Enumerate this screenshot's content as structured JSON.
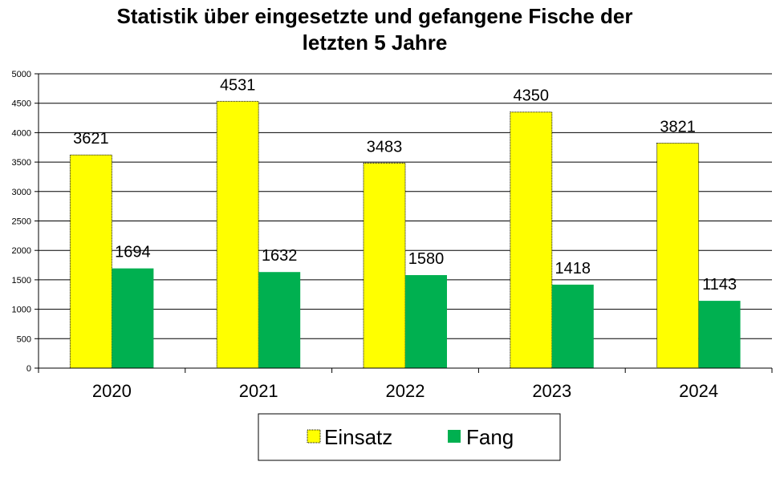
{
  "chart_data": {
    "type": "bar",
    "title_line1": "Statistik über eingesetzte und gefangene Fische der",
    "title_line2": "letzten 5 Jahre",
    "categories": [
      "2020",
      "2021",
      "2022",
      "2023",
      "2024"
    ],
    "series": [
      {
        "name": "Einsatz",
        "values": [
          3621,
          4531,
          3483,
          4350,
          3821
        ],
        "color": "#ffff00"
      },
      {
        "name": "Fang",
        "values": [
          1694,
          1632,
          1580,
          1418,
          1143
        ],
        "color": "#00b050"
      }
    ],
    "ylim": [
      0,
      5000
    ],
    "yticks": [
      "0",
      "500",
      "1000",
      "1500",
      "2000",
      "2500",
      "3000",
      "3500",
      "4000",
      "4500",
      "5000"
    ],
    "grid": true,
    "legend_position": "bottom"
  }
}
